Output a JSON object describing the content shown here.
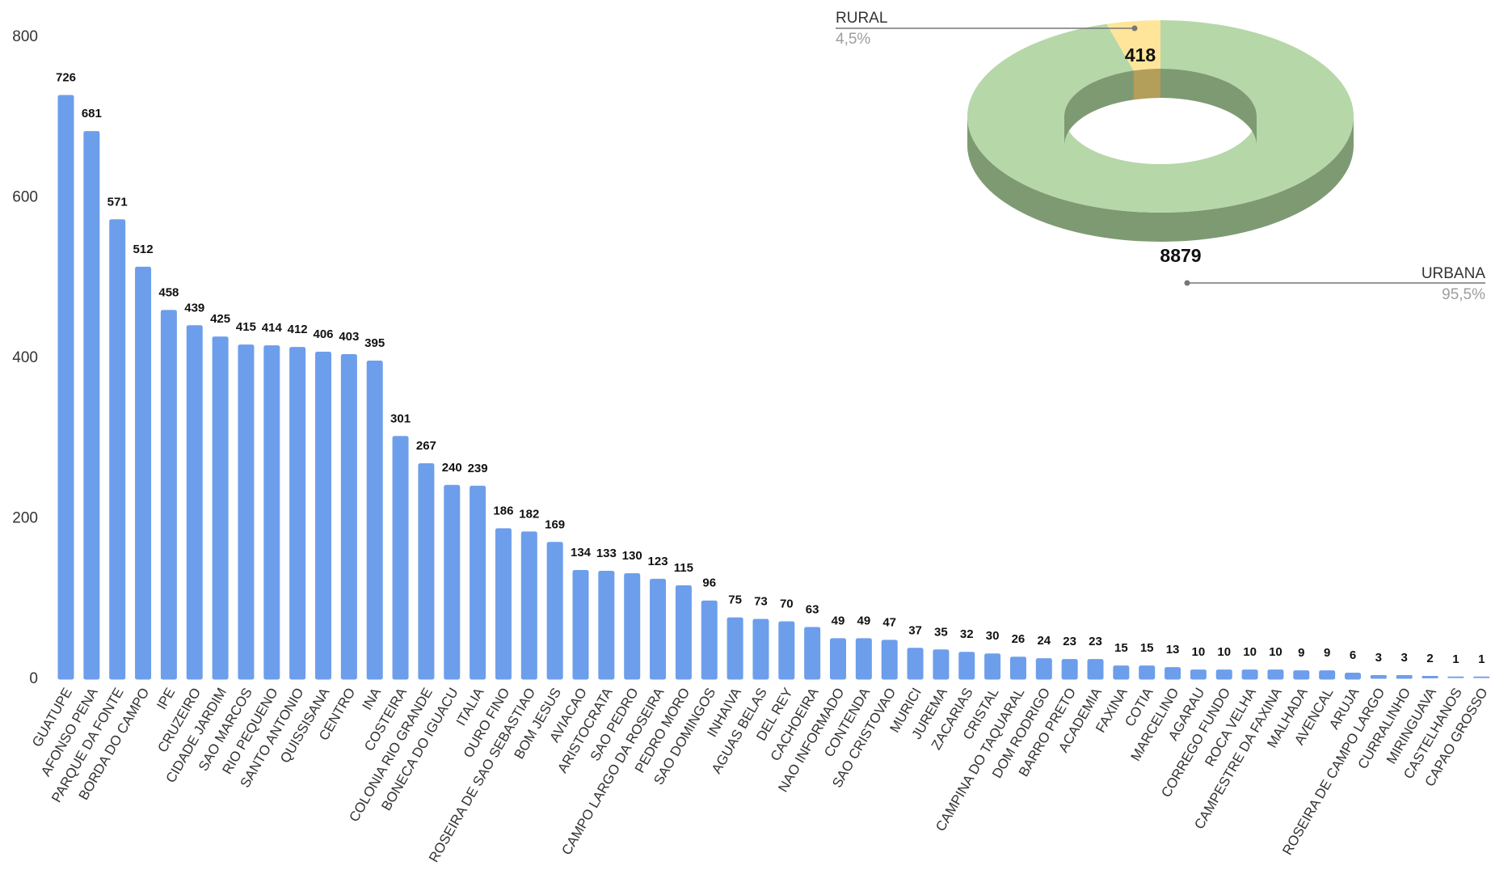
{
  "colors": {
    "bar": "#6d9eeb",
    "urbana_top": "#b6d7a8",
    "urbana_side": "#7e9a72",
    "rural_top": "#ffe599",
    "rural_side": "#b39e5a",
    "leader": "#777777"
  },
  "chart_data": [
    {
      "type": "bar",
      "title": "",
      "xlabel": "",
      "ylabel": "",
      "ylim": [
        0,
        800
      ],
      "yticks": [
        0,
        200,
        400,
        600,
        800
      ],
      "grid": false,
      "legend": "none",
      "categories": [
        "GUATUPE",
        "AFONSO PENA",
        "PARQUE DA FONTE",
        "BORDA DO CAMPO",
        "IPE",
        "CRUZEIRO",
        "CIDADE JARDIM",
        "SAO MARCOS",
        "RIO PEQUENO",
        "SANTO ANTONIO",
        "QUISSISANA",
        "CENTRO",
        "INA",
        "COSTEIRA",
        "COLONIA RIO GRANDE",
        "BONECA DO IGUACU",
        "ITALIA",
        "OURO FINO",
        "ROSEIRA DE SAO SEBASTIAO",
        "BOM JESUS",
        "AVIACAO",
        "ARISTOCRATA",
        "SAO PEDRO",
        "CAMPO LARGO DA ROSEIRA",
        "PEDRO MORO",
        "SAO DOMINGOS",
        "INHAIVA",
        "AGUAS BELAS",
        "DEL REY",
        "CACHOEIRA",
        "NAO INFORMADO",
        "CONTENDA",
        "SAO CRISTOVAO",
        "MURICI",
        "JUREMA",
        "ZACARIAS",
        "CRISTAL",
        "CAMPINA DO TAQUARAL",
        "DOM RODRIGO",
        "BARRO PRETO",
        "ACADEMIA",
        "FAXINA",
        "COTIA",
        "MARCELINO",
        "AGARAU",
        "CORREGO FUNDO",
        "ROCA VELHA",
        "CAMPESTRE DA FAXINA",
        "MALHADA",
        "AVENCAL",
        "ARUJA",
        "ROSEIRA DE CAMPO LARGO",
        "CURRALINHO",
        "MIRINGUAVA",
        "CASTELHANOS",
        "CAPAO GROSSO"
      ],
      "values": [
        726,
        681,
        571,
        512,
        458,
        439,
        425,
        415,
        414,
        412,
        406,
        403,
        395,
        301,
        267,
        240,
        239,
        186,
        182,
        169,
        134,
        133,
        130,
        123,
        115,
        96,
        75,
        73,
        70,
        63,
        49,
        49,
        47,
        37,
        35,
        32,
        30,
        26,
        24,
        23,
        23,
        15,
        15,
        13,
        10,
        10,
        10,
        10,
        9,
        9,
        6,
        3,
        3,
        2,
        1,
        1
      ]
    },
    {
      "type": "pie",
      "style": "3d-donut",
      "title": "",
      "legend": "none",
      "slices": [
        {
          "name": "RURAL",
          "value": 418,
          "percent_label": "4,5%"
        },
        {
          "name": "URBANA",
          "value": 8879,
          "percent_label": "95,5%"
        }
      ]
    }
  ]
}
